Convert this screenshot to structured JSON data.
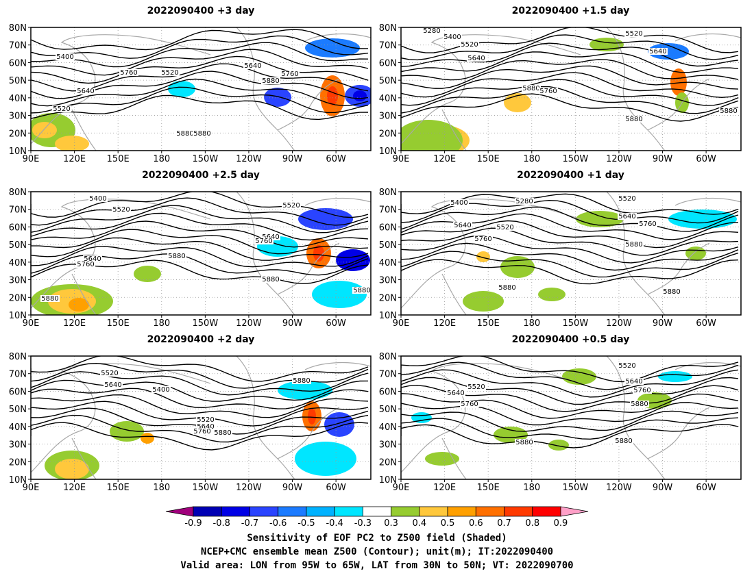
{
  "panels": [
    {
      "title": "2022090400  +3 day",
      "contours": [
        "5400",
        "5760",
        "5520",
        "5640",
        "5880",
        "5880",
        "5640",
        "5520",
        "5760",
        "5880"
      ]
    },
    {
      "title": "2022090400  +1.5 day",
      "contours": [
        "5280",
        "5400",
        "5520",
        "5640",
        "5520",
        "5880",
        "5760",
        "5640",
        "5880",
        "5880"
      ]
    },
    {
      "title": "2022090400  +2.5 day",
      "contours": [
        "5400",
        "5520",
        "5640",
        "5760",
        "5880",
        "5880",
        "5520",
        "5640",
        "5760",
        "5880",
        "5880"
      ]
    },
    {
      "title": "2022090400  +1 day",
      "contours": [
        "5400",
        "5280",
        "5640",
        "5520",
        "5760",
        "5520",
        "5640",
        "5760",
        "5880",
        "5880",
        "5880"
      ]
    },
    {
      "title": "2022090400  +2 day",
      "contours": [
        "5520",
        "5640",
        "5400",
        "5520",
        "5640",
        "5760",
        "5880",
        "5880"
      ]
    },
    {
      "title": "2022090400  +0.5 day",
      "contours": [
        "5520",
        "5640",
        "5520",
        "5760",
        "5640",
        "5760",
        "5880",
        "5880",
        "5880"
      ]
    }
  ],
  "axes": {
    "lat_labels": [
      "80N",
      "70N",
      "60N",
      "50N",
      "40N",
      "30N",
      "20N",
      "10N"
    ],
    "lon_labels": [
      "90E",
      "120E",
      "150E",
      "180",
      "150W",
      "120W",
      "90W",
      "60W"
    ]
  },
  "colorbar": {
    "labels": [
      "-0.9",
      "-0.8",
      "-0.7",
      "-0.6",
      "-0.5",
      "-0.4",
      "-0.3",
      "0.3",
      "0.4",
      "0.5",
      "0.6",
      "0.7",
      "0.8",
      "0.9"
    ],
    "colors": [
      "#a0007c",
      "#0000b4",
      "#0000e6",
      "#2a44ff",
      "#1b7bff",
      "#00b2ff",
      "#00e6ff",
      "#ffffff",
      "#96cc30",
      "#ffc83c",
      "#ffa000",
      "#ff7000",
      "#ff3a00",
      "#ff0000",
      "#ffa0c8"
    ]
  },
  "footer": {
    "line1": "Sensitivity of EOF PC2 to Z500 field (Shaded)",
    "line2": "NCEP+CMC ensemble mean Z500 (Contour); unit(m); IT:2022090400",
    "line3": "Valid area: LON from 95W to 65W, LAT from 30N to 50N; VT: 2022090700"
  }
}
